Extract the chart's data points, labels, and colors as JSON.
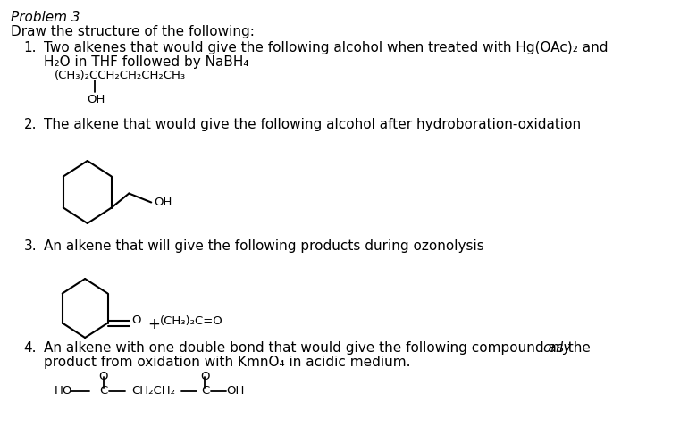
{
  "background_color": "#ffffff",
  "font_color": "#000000",
  "font_size_title": 11,
  "font_size_body": 11,
  "font_size_struct": 9.5,
  "title": "Problem 3",
  "subtitle": "Draw the structure of the following:",
  "item1_num": "1.",
  "item1_line1": "Two alkenes that would give the following alcohol when treated with Hg(OAc)₂ and",
  "item1_line2": "H₂O in THF followed by NaBH₄",
  "item1_struct": "(CH₃)₂CCH₂CH₂CH₂CH₃",
  "item1_oh": "OH",
  "item2_num": "2.",
  "item2_text": "The alkene that would give the following alcohol after hydroboration-oxidation",
  "item2_oh": "OH",
  "item3_num": "3.",
  "item3_text": "An alkene that will give the following products during ozonolysis",
  "item3_o": "O",
  "item3_plus": "+",
  "item3_ketone": "(CH₃)₂C=O",
  "item4_num": "4.",
  "item4_line1a": "An alkene with one double bond that would give the following compound as the ",
  "item4_line1b": "only",
  "item4_line2": "product from oxidation with KmnO₄ in acidic medium.",
  "item4_o": "O",
  "item4_ho": "HO",
  "item4_c": "C",
  "item4_ch2ch2": "CH₂CH₂",
  "item4_oh": "OH"
}
